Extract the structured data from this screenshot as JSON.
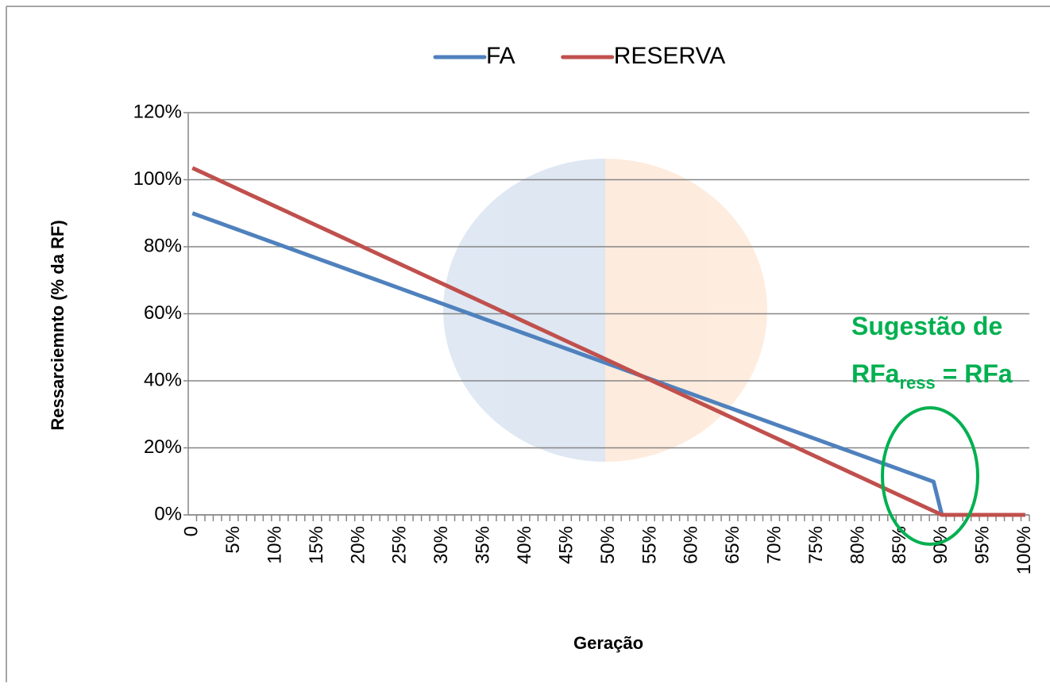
{
  "chart_data": {
    "type": "line",
    "y_label": "Ressarciemnto (% da RF)",
    "x_label": "Geração",
    "categories": [
      "0",
      null,
      null,
      null,
      null,
      "5%",
      null,
      null,
      null,
      null,
      "10%",
      null,
      null,
      null,
      null,
      "15%",
      null,
      null,
      null,
      null,
      "20%",
      null,
      null,
      null,
      null,
      "25%",
      null,
      null,
      null,
      null,
      "30%",
      null,
      null,
      null,
      null,
      "35%",
      null,
      null,
      null,
      null,
      "40%",
      null,
      null,
      null,
      null,
      "45%",
      null,
      null,
      null,
      null,
      "50%",
      null,
      null,
      null,
      null,
      "55%",
      null,
      null,
      null,
      null,
      "60%",
      null,
      null,
      null,
      null,
      "65%",
      null,
      null,
      null,
      null,
      "70%",
      null,
      null,
      null,
      null,
      "75%",
      null,
      null,
      null,
      null,
      "80%",
      null,
      null,
      null,
      null,
      "85%",
      null,
      null,
      null,
      null,
      "90%",
      null,
      null,
      null,
      null,
      "95%",
      null,
      null,
      null,
      null,
      "100%"
    ],
    "series": [
      {
        "name": "FA",
        "color": "#4f81bd",
        "values": [
          90,
          89.1,
          88.2,
          87.3,
          86.4,
          85.5,
          84.6,
          83.7,
          82.8,
          81.9,
          81,
          80.1,
          79.2,
          78.3,
          77.4,
          76.5,
          75.6,
          74.7,
          73.8,
          72.9,
          72,
          71.1,
          70.2,
          69.3,
          68.4,
          67.5,
          66.6,
          65.7,
          64.8,
          63.9,
          63,
          62.1,
          61.2,
          60.3,
          59.4,
          58.5,
          57.6,
          56.7,
          55.8,
          54.9,
          54,
          53.1,
          52.2,
          51.3,
          50.4,
          49.5,
          48.6,
          47.7,
          46.8,
          45.9,
          45,
          44.1,
          43.2,
          42.3,
          41.4,
          40.5,
          39.6,
          38.7,
          37.8,
          36.9,
          36,
          35.1,
          34.2,
          33.3,
          32.4,
          31.5,
          30.6,
          29.7,
          28.8,
          27.9,
          27,
          26.1,
          25.2,
          24.3,
          23.4,
          22.5,
          21.6,
          20.7,
          19.8,
          18.9,
          18,
          17.1,
          16.2,
          15.3,
          14.4,
          13.5,
          12.6,
          11.7,
          10.8,
          9.9,
          0,
          0,
          0,
          0,
          0,
          0,
          0,
          0,
          0,
          0,
          0
        ]
      },
      {
        "name": "RESERVA",
        "color": "#c0504d",
        "values": [
          103.5,
          102.35,
          101.2,
          100.05,
          98.9,
          97.75,
          96.6,
          95.45,
          94.3,
          93.15,
          92,
          90.85,
          89.7,
          88.55,
          87.4,
          86.25,
          85.1,
          83.95,
          82.8,
          81.65,
          80.5,
          79.35,
          78.2,
          77.05,
          75.9,
          74.75,
          73.6,
          72.45,
          71.3,
          70.15,
          69,
          67.85,
          66.7,
          65.55,
          64.4,
          63.25,
          62.1,
          60.95,
          59.8,
          58.65,
          57.5,
          56.35,
          55.2,
          54.05,
          52.9,
          51.75,
          50.6,
          49.45,
          48.3,
          47.15,
          46,
          44.85,
          43.7,
          42.55,
          41.4,
          40.25,
          39.1,
          37.95,
          36.8,
          35.65,
          34.5,
          33.35,
          32.2,
          31.05,
          29.9,
          28.75,
          27.6,
          26.45,
          25.3,
          24.15,
          23,
          21.85,
          20.7,
          19.55,
          18.4,
          17.25,
          16.1,
          14.95,
          13.8,
          12.65,
          11.5,
          10.35,
          9.2,
          8.05,
          6.9,
          5.75,
          4.6,
          3.45,
          2.3,
          1.15,
          0,
          0,
          0,
          0,
          0,
          0,
          0,
          0,
          0,
          0,
          0
        ]
      }
    ],
    "ylim": [
      0,
      120
    ],
    "yticks": [
      {
        "value": 0,
        "label": "0%"
      },
      {
        "value": 20,
        "label": "20%"
      },
      {
        "value": 40,
        "label": "40%"
      },
      {
        "value": 60,
        "label": "60%"
      },
      {
        "value": 80,
        "label": "80%"
      },
      {
        "value": 100,
        "label": "100%"
      },
      {
        "value": 120,
        "label": "120%"
      }
    ],
    "grid": true,
    "legend": "top",
    "annotation": {
      "line1": "Sugestão de",
      "line2": "RFa",
      "subscript": "ress",
      "line2_rest": " = RFa",
      "color": "#00b050"
    }
  }
}
